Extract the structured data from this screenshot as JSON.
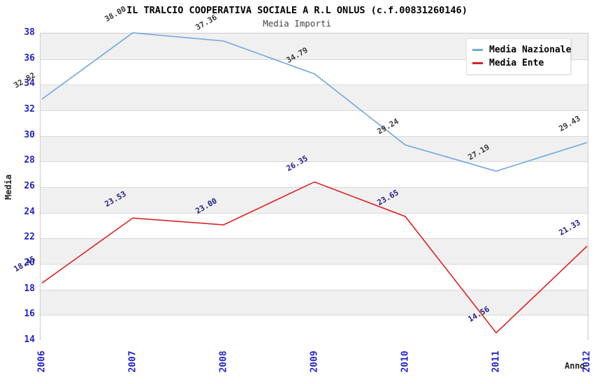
{
  "chart_data": {
    "type": "line",
    "title": "IL TRALCIO COOPERATIVA SOCIALE A R.L ONLUS (c.f.00831260146)",
    "subtitle": "Media Importi",
    "xlabel": "Anno",
    "ylabel": "Media",
    "categories": [
      "2006",
      "2007",
      "2008",
      "2009",
      "2010",
      "2011",
      "2012"
    ],
    "ylim": [
      14,
      38
    ],
    "ytick_step": 2,
    "y_ticks": [
      38,
      36,
      34,
      32,
      30,
      28,
      26,
      24,
      22,
      20,
      18,
      16,
      14
    ],
    "grid": "horizontal-bands",
    "legend_position": "top-right",
    "series": [
      {
        "name": "Media Nazionale",
        "color": "#6fa8dc",
        "label_color": "#3a3a3a",
        "values": [
          32.82,
          38.0,
          37.36,
          34.79,
          29.24,
          27.19,
          29.43
        ],
        "point_labels": [
          "32.82",
          "38.00",
          "37.36",
          "34.79",
          "29.24",
          "27.19",
          "29.43"
        ]
      },
      {
        "name": "Media Ente",
        "color": "#dd2222",
        "label_color": "#22228a",
        "values": [
          18.45,
          23.53,
          23.0,
          26.35,
          23.65,
          14.56,
          21.33
        ],
        "point_labels": [
          "18.45",
          "23.53",
          "23.00",
          "26.35",
          "23.65",
          "14.56",
          "21.33"
        ]
      }
    ],
    "colors": {
      "tick_label": "#2222cc",
      "band_gray": "#f0f0f0",
      "band_white": "#ffffff",
      "gridline": "#d9d9d9",
      "plot_border": "#cccccc",
      "axis_bottom": "#888888"
    }
  }
}
